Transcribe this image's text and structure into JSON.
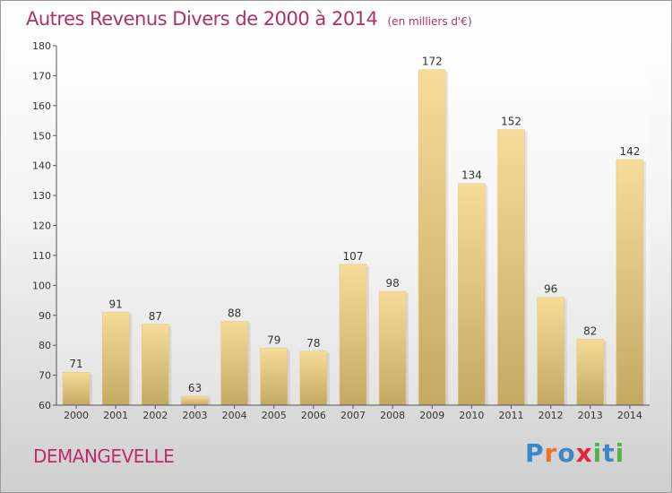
{
  "title": "Autres Revenus Divers de 2000 à 2014",
  "unit": "(en milliers d'€)",
  "location": "DEMANGEVELLE",
  "brand": "Proxiti",
  "colors": {
    "title": "#b0306a",
    "bar_light": "#f6dc98",
    "bar_dark": "#c4a963",
    "brand_letters": [
      "#3b87c8",
      "#e9742b",
      "#3b87c8",
      "#e3273a",
      "#58b04d",
      "#3b87c8",
      "#58b04d"
    ]
  },
  "chart_data": {
    "type": "bar",
    "title": "Autres Revenus Divers de 2000 à 2014",
    "subtitle": "(en milliers d'€)",
    "categories": [
      "2000",
      "2001",
      "2002",
      "2003",
      "2004",
      "2005",
      "2006",
      "2007",
      "2008",
      "2009",
      "2010",
      "2011",
      "2012",
      "2013",
      "2014"
    ],
    "values": [
      71,
      91,
      87,
      63,
      88,
      79,
      78,
      107,
      98,
      172,
      134,
      152,
      96,
      82,
      142
    ],
    "ylim": [
      60,
      180
    ],
    "yticks": [
      60,
      70,
      80,
      90,
      100,
      110,
      120,
      130,
      140,
      150,
      160,
      170,
      180
    ],
    "grid": false,
    "xlabel": "",
    "ylabel": ""
  }
}
